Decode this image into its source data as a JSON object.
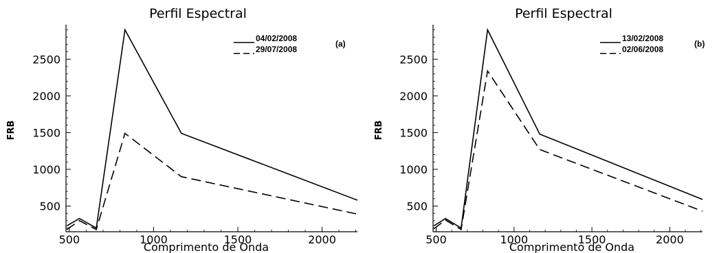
{
  "chart_data": [
    {
      "type": "line",
      "title": "Perfil Espectral",
      "xlabel": "Comprimento de Onda",
      "ylabel": "FRB",
      "panel_label": "(a)",
      "xlim": [
        480,
        2210
      ],
      "ylim": [
        150,
        2970
      ],
      "xticks": [
        500,
        1000,
        1500,
        2000
      ],
      "yticks": [
        500,
        1000,
        1500,
        2000,
        2500
      ],
      "legend_position": "top-right",
      "grid": false,
      "series": [
        {
          "name": "04/02/2008",
          "style": "solid",
          "x": [
            485,
            560,
            660,
            830,
            1165,
            2210
          ],
          "y": [
            230,
            330,
            200,
            2900,
            1490,
            580
          ]
        },
        {
          "name": "29/07/2008",
          "style": "dashed",
          "x": [
            485,
            560,
            660,
            830,
            1165,
            2210
          ],
          "y": [
            180,
            300,
            180,
            1490,
            900,
            390
          ]
        }
      ]
    },
    {
      "type": "line",
      "title": "Perfil Espectral",
      "xlabel": "Comprimento de Onda",
      "ylabel": "FRB",
      "panel_label": "(b)",
      "xlim": [
        480,
        2210
      ],
      "ylim": [
        150,
        2970
      ],
      "xticks": [
        500,
        1000,
        1500,
        2000
      ],
      "yticks": [
        500,
        1000,
        1500,
        2000,
        2500
      ],
      "legend_position": "top-right",
      "grid": false,
      "series": [
        {
          "name": "13/02/2008",
          "style": "solid",
          "x": [
            485,
            560,
            660,
            830,
            1165,
            2210
          ],
          "y": [
            230,
            330,
            200,
            2900,
            1480,
            590
          ]
        },
        {
          "name": "02/06/2008",
          "style": "dashed",
          "x": [
            485,
            560,
            660,
            830,
            1165,
            2210
          ],
          "y": [
            190,
            310,
            180,
            2340,
            1270,
            430
          ]
        }
      ]
    }
  ]
}
